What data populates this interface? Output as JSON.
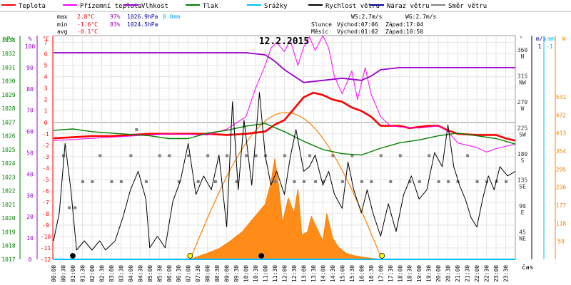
{
  "legend": [
    {
      "label": "Teplota",
      "color": "#ff0000"
    },
    {
      "label": "Přízemní teplota",
      "color": "#ff00ff"
    },
    {
      "label": "Vlhkost",
      "color": "#9900cc"
    },
    {
      "label": "Tlak",
      "color": "#008000"
    },
    {
      "label": "Srážky",
      "color": "#00bfff"
    },
    {
      "label": "Rychlost větru",
      "color": "#000000"
    },
    {
      "label": "Náraz větru",
      "color": "#000099"
    },
    {
      "label": "Směr větru",
      "color": "#808080"
    }
  ],
  "stats": {
    "max_label": "max",
    "max_temp": "2.8°C",
    "max_hum": "97%",
    "max_press": "1026.9hPa",
    "max_rain": "0.0mm",
    "min_label": "min",
    "min_temp": "-1.6°C",
    "min_hum": "83%",
    "min_press": "1024.5hPa",
    "avg_label": "avg",
    "avg_temp": "-0.1°C"
  },
  "wind_info": {
    "ws": "WS:2.7m/s",
    "wg": "WG:2.7m/s"
  },
  "sun": {
    "label": "Slunce",
    "rise": "Východ:07:06",
    "set": "Západ:17:04"
  },
  "moon": {
    "label": "Měsíc",
    "rise": "Východ:01:02",
    "set": "Západ:10:50"
  },
  "chart_data": {
    "type": "line",
    "title": "12.2.2015",
    "xlabel": "čas",
    "x_ticks": [
      "00:00",
      "00:30",
      "01:00",
      "01:30",
      "02:00",
      "02:30",
      "03:00",
      "03:30",
      "04:00",
      "04:30",
      "05:00",
      "05:30",
      "06:00",
      "06:30",
      "07:00",
      "07:30",
      "08:00",
      "08:30",
      "09:00",
      "09:30",
      "10:00",
      "10:30",
      "11:00",
      "11:30",
      "12:00",
      "12:30",
      "13:00",
      "13:30",
      "14:00",
      "14:30",
      "15:00",
      "15:30",
      "16:00",
      "16:30",
      "17:00",
      "17:30",
      "18:00",
      "18:30",
      "19:00",
      "19:30",
      "20:00",
      "20:30",
      "21:00",
      "21:30",
      "22:00",
      "22:30",
      "23:00",
      "23:30"
    ],
    "axes": {
      "hpa": {
        "label": "hPa",
        "ticks": [
          "1033",
          "1032",
          "1031",
          "1030",
          "1029",
          "1028",
          "1027",
          "1026",
          "1025",
          "1024",
          "1023",
          "1022",
          "1021",
          "1020",
          "1019",
          "1018",
          "1017"
        ],
        "range": [
          1017,
          1033.3
        ]
      },
      "pct": {
        "label": "%",
        "ticks": [
          "100",
          "90",
          "80",
          "70",
          "60",
          "50",
          "40",
          "30",
          "20",
          "10",
          "0"
        ],
        "range": [
          0,
          100
        ]
      },
      "temp": {
        "label": "°C",
        "ticks": [
          "7",
          "6",
          "5",
          "4",
          "3",
          "2",
          "1",
          "0",
          "-1",
          "-2",
          "-3",
          "-4",
          "-5",
          "-6",
          "-7",
          "-8",
          "-9",
          "-10",
          "-11",
          "-12"
        ],
        "range": [
          -12,
          7.6
        ]
      },
      "dir": {
        "label": "°",
        "ticks": [
          "360",
          "315",
          "270",
          "225",
          "180",
          "135",
          "90",
          "45"
        ],
        "names": [
          "N",
          "NW",
          "W",
          "SW",
          "S",
          "SE",
          "E",
          "NE"
        ],
        "range": [
          0,
          360
        ]
      },
      "ms": {
        "label": "m/s",
        "ticks": [
          "1"
        ]
      },
      "mm": {
        "label": "mm",
        "ticks": [
          "-1"
        ]
      },
      "w": {
        "label": "W",
        "ticks": [
          "531",
          "472",
          "413",
          "354",
          "295",
          "236",
          "177",
          "118",
          "59"
        ],
        "range": [
          0,
          531
        ]
      }
    },
    "series": [
      {
        "name": "Teplota",
        "axis": "temp",
        "color": "#ff0000",
        "points": [
          [
            0,
            -1.4
          ],
          [
            1,
            -1.3
          ],
          [
            2,
            -1.2
          ],
          [
            3,
            -1.2
          ],
          [
            4,
            -1.1
          ],
          [
            5,
            -1.0
          ],
          [
            6,
            -1.0
          ],
          [
            7,
            -1.0
          ],
          [
            8,
            -1.0
          ],
          [
            9,
            -1.1
          ],
          [
            10,
            -1.0
          ],
          [
            11,
            -0.8
          ],
          [
            11.5,
            -0.2
          ],
          [
            12,
            0.2
          ],
          [
            12.5,
            1.2
          ],
          [
            13,
            2.2
          ],
          [
            13.5,
            2.6
          ],
          [
            14,
            2.4
          ],
          [
            14.5,
            2.0
          ],
          [
            15,
            1.8
          ],
          [
            15.5,
            1.3
          ],
          [
            16,
            1.0
          ],
          [
            16.5,
            0.5
          ],
          [
            17,
            -0.3
          ],
          [
            17.5,
            -0.3
          ],
          [
            18,
            -0.3
          ],
          [
            18.5,
            -0.5
          ],
          [
            19,
            -0.4
          ],
          [
            19.5,
            -0.3
          ],
          [
            20,
            -0.3
          ],
          [
            20.5,
            -0.7
          ],
          [
            21,
            -1.0
          ],
          [
            22,
            -1.1
          ],
          [
            23,
            -1.1
          ],
          [
            23.5,
            -1.4
          ],
          [
            24,
            -1.6
          ]
        ]
      },
      {
        "name": "Přízemní teplota",
        "axis": "temp",
        "color": "#ff00ff",
        "points": [
          [
            0,
            -1.6
          ],
          [
            2,
            -1.4
          ],
          [
            4,
            -1.2
          ],
          [
            6,
            -1.0
          ],
          [
            8,
            -1.1
          ],
          [
            9,
            -0.6
          ],
          [
            10,
            0.5
          ],
          [
            10.5,
            3.0
          ],
          [
            11,
            5.0
          ],
          [
            11.3,
            6.5
          ],
          [
            11.6,
            7.0
          ],
          [
            12,
            6.2
          ],
          [
            12.3,
            7.2
          ],
          [
            12.7,
            5.0
          ],
          [
            13,
            6.6
          ],
          [
            13.3,
            7.5
          ],
          [
            13.6,
            6.3
          ],
          [
            14,
            7.6
          ],
          [
            14.3,
            6.5
          ],
          [
            14.6,
            4.0
          ],
          [
            15,
            2.5
          ],
          [
            15.5,
            4.5
          ],
          [
            15.8,
            2.0
          ],
          [
            16.2,
            4.8
          ],
          [
            16.5,
            2.5
          ],
          [
            17,
            0.5
          ],
          [
            17.5,
            -0.3
          ],
          [
            18,
            -0.4
          ],
          [
            19,
            -0.5
          ],
          [
            20,
            -0.3
          ],
          [
            20.5,
            -0.8
          ],
          [
            21,
            -1.8
          ],
          [
            22,
            -2.2
          ],
          [
            22.5,
            -2.6
          ],
          [
            23,
            -2.3
          ],
          [
            24,
            -1.9
          ]
        ]
      },
      {
        "name": "Vlhkost",
        "axis": "pct",
        "color": "#9900cc",
        "points": [
          [
            0,
            97
          ],
          [
            6,
            97
          ],
          [
            8,
            97
          ],
          [
            9,
            97
          ],
          [
            10,
            97
          ],
          [
            11,
            96
          ],
          [
            11.5,
            93
          ],
          [
            12,
            89
          ],
          [
            13,
            83
          ],
          [
            14,
            84
          ],
          [
            15,
            85
          ],
          [
            16,
            84
          ],
          [
            16.5,
            86
          ],
          [
            17,
            89
          ],
          [
            18,
            90
          ],
          [
            19,
            90
          ],
          [
            20,
            90
          ],
          [
            21,
            90
          ],
          [
            22,
            90
          ],
          [
            23,
            90
          ],
          [
            24,
            90
          ]
        ]
      },
      {
        "name": "Tlak",
        "axis": "hpa",
        "color": "#008000",
        "points": [
          [
            0,
            1026.4
          ],
          [
            1,
            1026.5
          ],
          [
            2,
            1026.3
          ],
          [
            3,
            1026.2
          ],
          [
            4,
            1026.1
          ],
          [
            5,
            1026.0
          ],
          [
            6,
            1025.8
          ],
          [
            7,
            1025.8
          ],
          [
            8,
            1026.2
          ],
          [
            9,
            1026.4
          ],
          [
            10,
            1026.7
          ],
          [
            11,
            1026.9
          ],
          [
            12,
            1026.3
          ],
          [
            13,
            1025.6
          ],
          [
            14,
            1025.0
          ],
          [
            15,
            1024.7
          ],
          [
            16,
            1024.6
          ],
          [
            17,
            1025.1
          ],
          [
            18,
            1025.5
          ],
          [
            19,
            1025.7
          ],
          [
            20,
            1026.0
          ],
          [
            21,
            1026.2
          ],
          [
            22,
            1026.0
          ],
          [
            23,
            1025.8
          ],
          [
            24,
            1025.4
          ]
        ]
      },
      {
        "name": "Rychlost větru",
        "axis": "ms",
        "color": "#000000",
        "points": [
          [
            0,
            0.8
          ],
          [
            0.3,
            2.0
          ],
          [
            0.6,
            5.0
          ],
          [
            0.9,
            3.0
          ],
          [
            1.2,
            0.4
          ],
          [
            1.6,
            0.8
          ],
          [
            2.0,
            0.4
          ],
          [
            2.4,
            0.8
          ],
          [
            2.7,
            0.4
          ],
          [
            3.2,
            0.8
          ],
          [
            3.6,
            1.8
          ],
          [
            4.0,
            3.0
          ],
          [
            4.4,
            3.8
          ],
          [
            4.8,
            2.6
          ],
          [
            5.0,
            0.5
          ],
          [
            5.4,
            1.0
          ],
          [
            5.8,
            0.5
          ],
          [
            6.2,
            2.5
          ],
          [
            6.6,
            3.4
          ],
          [
            7.0,
            5.0
          ],
          [
            7.4,
            2.8
          ],
          [
            7.8,
            3.6
          ],
          [
            8.2,
            3.0
          ],
          [
            8.6,
            4.5
          ],
          [
            9.0,
            1.4
          ],
          [
            9.3,
            6.8
          ],
          [
            9.6,
            3.0
          ],
          [
            9.9,
            6.0
          ],
          [
            10.3,
            3.2
          ],
          [
            10.7,
            7.2
          ],
          [
            11.0,
            4.5
          ],
          [
            11.3,
            3.2
          ],
          [
            11.6,
            3.8
          ],
          [
            12.0,
            2.8
          ],
          [
            12.3,
            4.4
          ],
          [
            12.6,
            5.6
          ],
          [
            13.0,
            3.8
          ],
          [
            13.3,
            4.0
          ],
          [
            13.6,
            4.5
          ],
          [
            14.0,
            3.2
          ],
          [
            14.3,
            3.8
          ],
          [
            14.6,
            2.8
          ],
          [
            15.0,
            2.2
          ],
          [
            15.3,
            4.2
          ],
          [
            15.6,
            3.0
          ],
          [
            16.0,
            2.0
          ],
          [
            16.3,
            3.0
          ],
          [
            16.6,
            2.0
          ],
          [
            17.0,
            1.0
          ],
          [
            17.4,
            2.4
          ],
          [
            17.8,
            1.2
          ],
          [
            18.2,
            2.8
          ],
          [
            18.6,
            3.6
          ],
          [
            19.0,
            2.6
          ],
          [
            19.4,
            3.0
          ],
          [
            19.8,
            4.6
          ],
          [
            20.2,
            4.0
          ],
          [
            20.5,
            5.8
          ],
          [
            20.8,
            4.0
          ],
          [
            21.1,
            3.2
          ],
          [
            21.4,
            2.6
          ],
          [
            21.7,
            1.8
          ],
          [
            22.0,
            1.4
          ],
          [
            22.3,
            2.6
          ],
          [
            22.6,
            3.6
          ],
          [
            22.9,
            3.0
          ],
          [
            23.2,
            4.0
          ],
          [
            23.6,
            3.6
          ],
          [
            24.0,
            3.8
          ]
        ]
      },
      {
        "name": "Sluneční záření",
        "axis": "w",
        "color": "#ff8000",
        "points": [
          [
            7.1,
            0
          ],
          [
            8.0,
            20
          ],
          [
            8.6,
            35
          ],
          [
            9.2,
            60
          ],
          [
            9.8,
            90
          ],
          [
            10.2,
            120
          ],
          [
            10.6,
            150
          ],
          [
            11.0,
            180
          ],
          [
            11.3,
            250
          ],
          [
            11.5,
            330
          ],
          [
            11.7,
            240
          ],
          [
            11.9,
            120
          ],
          [
            12.2,
            200
          ],
          [
            12.5,
            150
          ],
          [
            12.7,
            230
          ],
          [
            12.9,
            80
          ],
          [
            13.2,
            90
          ],
          [
            13.4,
            140
          ],
          [
            13.7,
            100
          ],
          [
            14.0,
            60
          ],
          [
            14.2,
            150
          ],
          [
            14.5,
            70
          ],
          [
            14.8,
            40
          ],
          [
            15.2,
            20
          ],
          [
            15.6,
            12
          ],
          [
            16.2,
            6
          ],
          [
            17.0,
            0
          ]
        ]
      }
    ],
    "sun_arc": {
      "rise_hour": 7.1,
      "set_hour": 17.07,
      "peak_w": 480
    },
    "wind_direction": [
      [
        0.5,
        180
      ],
      [
        0.8,
        90
      ],
      [
        1.1,
        90
      ],
      [
        1.5,
        135
      ],
      [
        2.0,
        135
      ],
      [
        2.4,
        180
      ],
      [
        3.0,
        135
      ],
      [
        3.5,
        135
      ],
      [
        4.0,
        180
      ],
      [
        4.3,
        225
      ],
      [
        4.8,
        135
      ],
      [
        5.5,
        180
      ],
      [
        6.0,
        180
      ],
      [
        6.5,
        135
      ],
      [
        7.0,
        180
      ],
      [
        7.5,
        135
      ],
      [
        8.0,
        180
      ],
      [
        8.4,
        135
      ],
      [
        9.0,
        180
      ],
      [
        9.5,
        135
      ],
      [
        10.0,
        180
      ],
      [
        10.5,
        180
      ],
      [
        11.0,
        180
      ],
      [
        11.5,
        135
      ],
      [
        12.0,
        180
      ],
      [
        12.5,
        135
      ],
      [
        13.0,
        135
      ],
      [
        13.3,
        180
      ],
      [
        13.6,
        135
      ],
      [
        14.0,
        135
      ],
      [
        14.5,
        180
      ],
      [
        15.0,
        135
      ],
      [
        15.5,
        180
      ],
      [
        16.0,
        135
      ],
      [
        16.5,
        135
      ],
      [
        17.0,
        180
      ],
      [
        17.5,
        135
      ],
      [
        18.0,
        180
      ],
      [
        18.5,
        135
      ],
      [
        19.0,
        135
      ],
      [
        19.5,
        180
      ],
      [
        20.0,
        135
      ],
      [
        20.5,
        135
      ],
      [
        21.0,
        135
      ],
      [
        21.5,
        180
      ],
      [
        22.0,
        135
      ],
      [
        22.5,
        135
      ],
      [
        23.0,
        135
      ],
      [
        23.5,
        135
      ]
    ],
    "markers": [
      {
        "hour": 1.0,
        "kind": "moonrise",
        "color": "#000000"
      },
      {
        "hour": 7.1,
        "kind": "sunrise",
        "color": "#ffff00"
      },
      {
        "hour": 10.8,
        "kind": "moonset",
        "color": "#000000"
      },
      {
        "hour": 17.07,
        "kind": "sunset",
        "color": "#ffff00"
      }
    ]
  }
}
